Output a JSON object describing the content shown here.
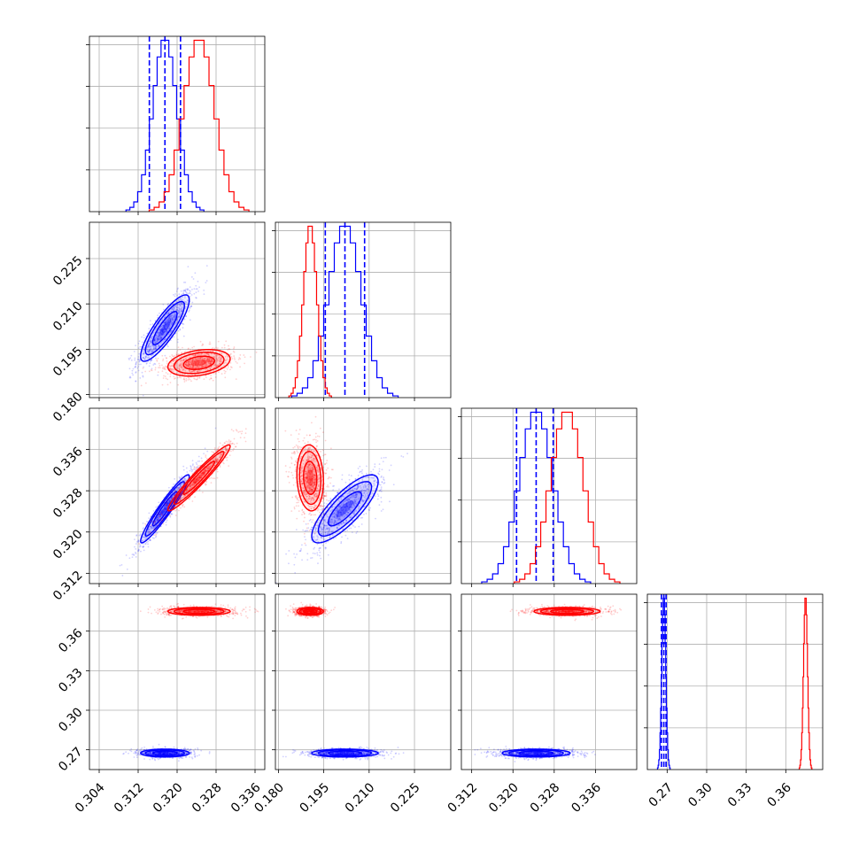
{
  "chart_data": {
    "type": "corner",
    "grid": true,
    "parameters": [
      {
        "range": [
          0.302,
          0.338
        ],
        "ticks": [
          "0.304",
          "0.312",
          "0.320",
          "0.328",
          "0.336"
        ]
      },
      {
        "range": [
          0.179,
          0.237
        ],
        "ticks": [
          "0.180",
          "0.195",
          "0.210",
          "0.225"
        ]
      },
      {
        "range": [
          0.31,
          0.344
        ],
        "ticks": [
          "0.312",
          "0.320",
          "0.328",
          "0.336"
        ]
      },
      {
        "range": [
          0.255,
          0.388
        ],
        "ticks": [
          "0.27",
          "0.30",
          "0.33",
          "0.36"
        ]
      }
    ],
    "series": [
      {
        "color": "#0000ff",
        "means": [
          0.3175,
          0.202,
          0.3245,
          0.2675
        ],
        "sds": [
          0.0025,
          0.0055,
          0.0033,
          0.0015
        ],
        "correlations": [
          [
            0,
            1,
            0.85
          ],
          [
            0,
            2,
            0.95
          ],
          [
            1,
            2,
            0.8
          ],
          [
            0,
            3,
            0.0
          ],
          [
            1,
            3,
            0.0
          ],
          [
            2,
            3,
            0.0
          ]
        ],
        "quantile_lines": [
          [
            0.3143,
            0.3175,
            0.3207
          ],
          [
            0.1955,
            0.202,
            0.2085
          ],
          [
            0.3207,
            0.3245,
            0.3278
          ],
          [
            0.2657,
            0.2675,
            0.2692
          ]
        ]
      },
      {
        "color": "#ff0000",
        "means": [
          0.3245,
          0.1905,
          0.3305,
          0.375
        ],
        "sds": [
          0.0032,
          0.0022,
          0.0032,
          0.0015
        ],
        "correlations": [
          [
            0,
            1,
            0.3
          ],
          [
            0,
            2,
            0.96
          ],
          [
            1,
            2,
            -0.1
          ],
          [
            0,
            3,
            0.0
          ],
          [
            1,
            3,
            0.0
          ],
          [
            2,
            3,
            0.0
          ]
        ]
      }
    ]
  }
}
